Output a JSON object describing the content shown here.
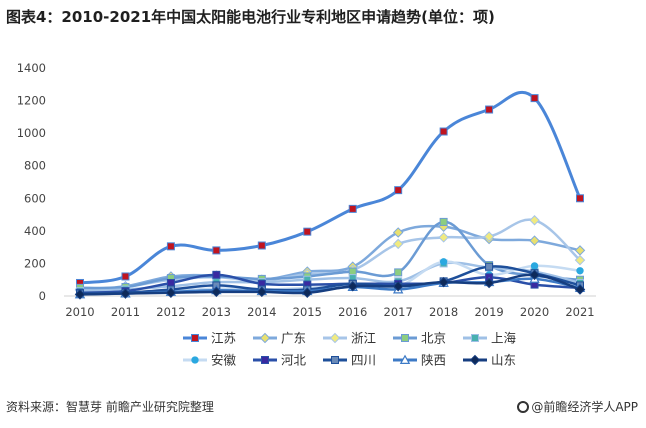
{
  "title": "图表4：2010-2021年中国太阳能电池行业专利地区申请趋势(单位：项)",
  "source": "资料来源：智慧芽 前瞻产业研究院整理",
  "brand": "@前瞻经济学人APP",
  "chart_data": {
    "type": "line",
    "title": "图表4：2010-2021年中国太阳能电池行业专利地区申请趋势(单位：项)",
    "x": [
      "2010",
      "2011",
      "2012",
      "2013",
      "2014",
      "2015",
      "2016",
      "2017",
      "2018",
      "2019",
      "2020",
      "2021"
    ],
    "yticks": [
      "0",
      "200",
      "400",
      "600",
      "800",
      "1000",
      "1200",
      "1400"
    ],
    "ylim": [
      0,
      1400
    ],
    "grid": false,
    "legend_position": "bottom",
    "series": [
      {
        "name": "江苏",
        "color": "#4a86d8",
        "marker": "square",
        "marker_color": "#c0141f",
        "width": 3,
        "values": [
          80,
          120,
          305,
          280,
          310,
          395,
          535,
          650,
          1010,
          1145,
          1215,
          600
        ]
      },
      {
        "name": "广东",
        "color": "#7ea9dc",
        "marker": "diamond",
        "marker_color": "#e8e070",
        "width": 2.5,
        "values": [
          40,
          60,
          120,
          125,
          100,
          150,
          180,
          390,
          425,
          350,
          340,
          280
        ]
      },
      {
        "name": "浙江",
        "color": "#a7c5e8",
        "marker": "diamond",
        "marker_color": "#f0ea80",
        "width": 2.5,
        "values": [
          35,
          55,
          100,
          115,
          95,
          135,
          160,
          320,
          360,
          365,
          465,
          220
        ]
      },
      {
        "name": "北京",
        "color": "#6b9bd4",
        "marker": "square",
        "marker_color": "#8ccd80",
        "width": 2.5,
        "values": [
          50,
          55,
          110,
          120,
          105,
          120,
          150,
          145,
          455,
          190,
          125,
          100
        ]
      },
      {
        "name": "上海",
        "color": "#9fc0e6",
        "marker": "square",
        "marker_color": "#48b0b0",
        "width": 2.5,
        "values": [
          30,
          40,
          60,
          85,
          85,
          100,
          110,
          90,
          200,
          175,
          150,
          80
        ]
      },
      {
        "name": "安徽",
        "color": "#c5dbf2",
        "marker": "circle",
        "marker_color": "#2aa8e0",
        "width": 2.5,
        "values": [
          10,
          20,
          30,
          45,
          40,
          50,
          70,
          60,
          210,
          130,
          185,
          155
        ]
      },
      {
        "name": "河北",
        "color": "#2a4fa8",
        "marker": "square",
        "marker_color": "#3a2aa0",
        "width": 2.5,
        "values": [
          20,
          30,
          80,
          130,
          75,
          70,
          75,
          75,
          80,
          115,
          70,
          50
        ]
      },
      {
        "name": "四川",
        "color": "#1e4f9a",
        "marker": "square",
        "marker_color": "#6a8ab8",
        "width": 2.5,
        "values": [
          15,
          20,
          40,
          65,
          40,
          40,
          75,
          60,
          90,
          180,
          140,
          65
        ]
      },
      {
        "name": "陕西",
        "color": "#3d7ac6",
        "marker": "triangle",
        "marker_color": "#ffffff",
        "width": 2.5,
        "values": [
          10,
          15,
          25,
          35,
          30,
          30,
          55,
          40,
          80,
          85,
          105,
          50
        ]
      },
      {
        "name": "山东",
        "color": "#163e80",
        "marker": "diamond",
        "marker_color": "#0e2a5a",
        "width": 2.5,
        "values": [
          10,
          15,
          20,
          25,
          25,
          20,
          60,
          60,
          85,
          80,
          130,
          40
        ]
      }
    ]
  }
}
